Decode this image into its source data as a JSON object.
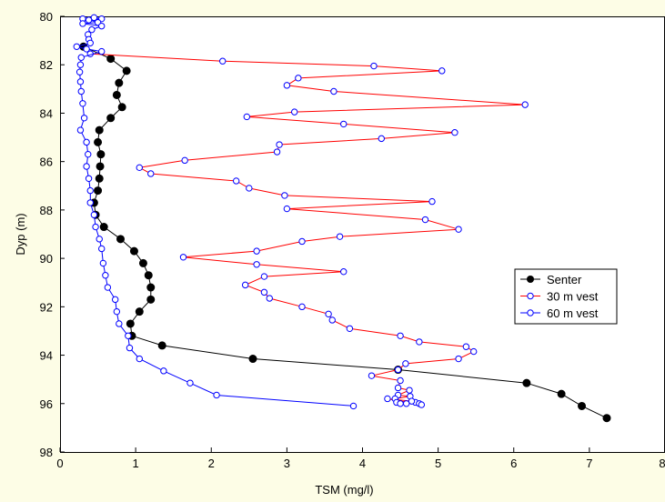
{
  "chart_data": {
    "type": "line",
    "xlabel": "TSM (mg/l)",
    "ylabel": "Dyp (m)",
    "xlim": [
      0,
      8
    ],
    "ylim": [
      80,
      98
    ],
    "y_inverted": true,
    "x_ticks": [
      "0",
      "1",
      "2",
      "3",
      "4",
      "5",
      "6",
      "7",
      "8"
    ],
    "y_ticks": [
      "80",
      "82",
      "84",
      "86",
      "88",
      "90",
      "92",
      "94",
      "96",
      "98"
    ],
    "grid": false,
    "legend_position": "right",
    "background_color": "#fdfde6",
    "plot_background_color": "#ffffff",
    "series": [
      {
        "name": "Senter",
        "color": "#000000",
        "marker": "filled-circle",
        "points": [
          [
            0.31,
            81.25
          ],
          [
            0.67,
            81.75
          ],
          [
            0.88,
            82.25
          ],
          [
            0.78,
            82.75
          ],
          [
            0.75,
            83.25
          ],
          [
            0.82,
            83.75
          ],
          [
            0.67,
            84.2
          ],
          [
            0.52,
            84.7
          ],
          [
            0.5,
            85.2
          ],
          [
            0.54,
            85.7
          ],
          [
            0.53,
            86.2
          ],
          [
            0.52,
            86.7
          ],
          [
            0.5,
            87.2
          ],
          [
            0.45,
            87.7
          ],
          [
            0.47,
            88.2
          ],
          [
            0.58,
            88.7
          ],
          [
            0.8,
            89.2
          ],
          [
            0.98,
            89.7
          ],
          [
            1.1,
            90.2
          ],
          [
            1.17,
            90.7
          ],
          [
            1.2,
            91.2
          ],
          [
            1.2,
            91.7
          ],
          [
            1.05,
            92.2
          ],
          [
            0.93,
            92.7
          ],
          [
            0.95,
            93.2
          ],
          [
            1.35,
            93.6
          ],
          [
            2.55,
            94.15
          ],
          [
            4.47,
            94.6
          ],
          [
            6.17,
            95.15
          ],
          [
            6.63,
            95.6
          ],
          [
            6.9,
            96.1
          ],
          [
            7.23,
            96.6
          ]
        ]
      },
      {
        "name": "30 m vest",
        "color": "#ff0000",
        "marker": "open-circle",
        "marker_color": "#0000ff",
        "points": [
          [
            0.4,
            81.55
          ],
          [
            2.15,
            81.85
          ],
          [
            4.15,
            82.05
          ],
          [
            5.05,
            82.25
          ],
          [
            3.15,
            82.55
          ],
          [
            3.0,
            82.85
          ],
          [
            3.62,
            83.1
          ],
          [
            6.15,
            83.65
          ],
          [
            3.1,
            83.95
          ],
          [
            2.47,
            84.15
          ],
          [
            3.75,
            84.45
          ],
          [
            5.22,
            84.8
          ],
          [
            4.25,
            85.05
          ],
          [
            2.9,
            85.3
          ],
          [
            2.87,
            85.6
          ],
          [
            1.65,
            85.95
          ],
          [
            1.05,
            86.25
          ],
          [
            1.2,
            86.5
          ],
          [
            2.33,
            86.8
          ],
          [
            2.5,
            87.1
          ],
          [
            2.97,
            87.4
          ],
          [
            4.92,
            87.65
          ],
          [
            3.0,
            87.95
          ],
          [
            4.83,
            88.4
          ],
          [
            5.27,
            88.8
          ],
          [
            3.7,
            89.1
          ],
          [
            3.2,
            89.3
          ],
          [
            2.6,
            89.7
          ],
          [
            1.63,
            89.95
          ],
          [
            2.6,
            90.25
          ],
          [
            3.75,
            90.55
          ],
          [
            2.7,
            90.75
          ],
          [
            2.45,
            91.1
          ],
          [
            2.7,
            91.4
          ],
          [
            2.77,
            91.65
          ],
          [
            3.2,
            92.0
          ],
          [
            3.55,
            92.3
          ],
          [
            3.6,
            92.55
          ],
          [
            3.83,
            92.9
          ],
          [
            4.5,
            93.2
          ],
          [
            4.75,
            93.45
          ],
          [
            5.37,
            93.65
          ],
          [
            5.47,
            93.85
          ],
          [
            5.27,
            94.15
          ],
          [
            4.57,
            94.35
          ],
          [
            4.47,
            94.6
          ],
          [
            4.12,
            94.85
          ],
          [
            4.5,
            95.05
          ],
          [
            4.47,
            95.35
          ],
          [
            4.62,
            95.45
          ],
          [
            4.47,
            95.65
          ],
          [
            4.63,
            95.7
          ],
          [
            4.43,
            95.8
          ],
          [
            4.45,
            95.95
          ],
          [
            4.7,
            95.95
          ],
          [
            4.5,
            96.0
          ],
          [
            4.58,
            96.0
          ],
          [
            4.75,
            96.0
          ],
          [
            4.65,
            95.9
          ],
          [
            4.33,
            95.8
          ],
          [
            4.78,
            96.05
          ]
        ]
      },
      {
        "name": "60 m vest",
        "color": "#0000ff",
        "marker": "open-circle",
        "marker_color": "#0000ff",
        "points": [
          [
            0.3,
            80.1
          ],
          [
            0.45,
            80.05
          ],
          [
            0.55,
            80.1
          ],
          [
            0.38,
            80.15
          ],
          [
            0.5,
            80.25
          ],
          [
            0.3,
            80.3
          ],
          [
            0.55,
            80.4
          ],
          [
            0.42,
            80.55
          ],
          [
            0.37,
            80.75
          ],
          [
            0.38,
            80.95
          ],
          [
            0.4,
            81.1
          ],
          [
            0.22,
            81.25
          ],
          [
            0.35,
            81.35
          ],
          [
            0.55,
            81.45
          ],
          [
            0.28,
            81.7
          ],
          [
            0.27,
            82.0
          ],
          [
            0.26,
            82.3
          ],
          [
            0.27,
            82.7
          ],
          [
            0.28,
            83.1
          ],
          [
            0.3,
            83.6
          ],
          [
            0.32,
            84.2
          ],
          [
            0.27,
            84.7
          ],
          [
            0.35,
            85.2
          ],
          [
            0.37,
            85.7
          ],
          [
            0.35,
            86.2
          ],
          [
            0.38,
            86.7
          ],
          [
            0.4,
            87.2
          ],
          [
            0.4,
            87.7
          ],
          [
            0.45,
            88.2
          ],
          [
            0.47,
            88.7
          ],
          [
            0.52,
            89.2
          ],
          [
            0.55,
            89.6
          ],
          [
            0.57,
            90.2
          ],
          [
            0.6,
            90.7
          ],
          [
            0.63,
            91.2
          ],
          [
            0.73,
            91.7
          ],
          [
            0.75,
            92.2
          ],
          [
            0.78,
            92.7
          ],
          [
            0.9,
            93.2
          ],
          [
            0.92,
            93.7
          ],
          [
            1.05,
            94.15
          ],
          [
            1.37,
            94.65
          ],
          [
            1.72,
            95.15
          ],
          [
            2.07,
            95.65
          ],
          [
            3.88,
            96.1
          ]
        ]
      }
    ]
  }
}
